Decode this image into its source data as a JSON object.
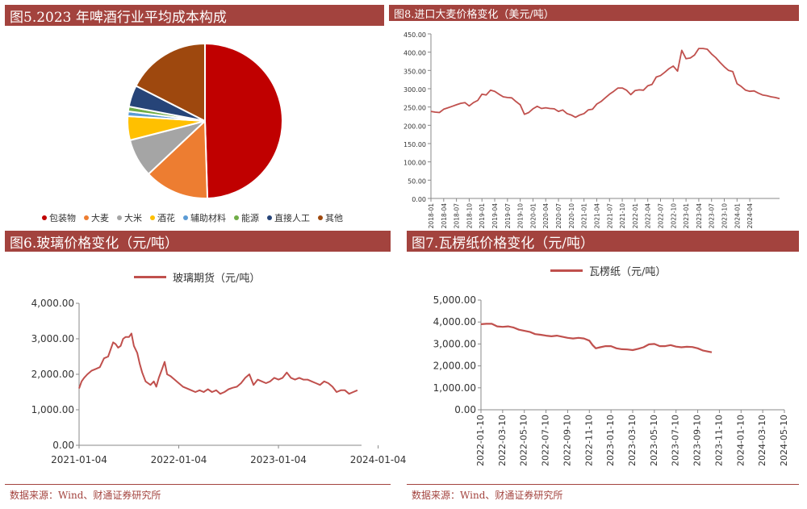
{
  "colors": {
    "title_bg": "#a3433e",
    "line": "#c0504d",
    "axis": "#888888"
  },
  "panels": {
    "p5": {
      "title": "图5.2023 年啤酒行业平均成本构成"
    },
    "p8": {
      "title": "图8.进口大麦价格变化（美元/吨）"
    },
    "p6": {
      "title": "图6.玻璃价格变化（元/吨）",
      "source": "数据来源：Wind、财通证券研究所"
    },
    "p7": {
      "title": "图7.瓦楞纸价格变化（元/吨）",
      "source": "数据来源：Wind、财通证券研究所"
    }
  },
  "chart_data": [
    {
      "id": "cost-pie",
      "type": "pie",
      "legend": "bottom",
      "categories": [
        "包装物",
        "大麦",
        "大米",
        "酒花",
        "辅助材料",
        "能源",
        "直接人工",
        "其他"
      ],
      "values": [
        49.5,
        13.5,
        8.0,
        5.0,
        1.0,
        1.0,
        4.5,
        17.5
      ],
      "colors": [
        "#c00000",
        "#ed7d31",
        "#a5a5a5",
        "#ffc000",
        "#5b9bd5",
        "#70ad47",
        "#264478",
        "#9e480e"
      ]
    },
    {
      "id": "barley-line",
      "type": "line",
      "legend": "none",
      "x_tick_labels": [
        "2018-01",
        "2018-04",
        "2018-07",
        "2018-10",
        "2019-01",
        "2019-04",
        "2019-07",
        "2019-10",
        "2020-01",
        "2020-04",
        "2020-07",
        "2020-10",
        "2021-01",
        "2021-04",
        "2021-07",
        "2021-10",
        "2022-01",
        "2022-04",
        "2022-07",
        "2022-10",
        "2023-01",
        "2023-04",
        "2023-07",
        "2023-10",
        "2024-01",
        "2024-04"
      ],
      "y_tick_labels": [
        "0.00",
        "50.00",
        "100.00",
        "150.00",
        "200.00",
        "250.00",
        "300.00",
        "350.00",
        "400.00",
        "450.00"
      ],
      "ylim": [
        0,
        450
      ],
      "x_start": "2018-01",
      "values": [
        238,
        236,
        235,
        244,
        248,
        252,
        256,
        260,
        262,
        253,
        262,
        268,
        285,
        283,
        296,
        293,
        285,
        278,
        276,
        275,
        265,
        256,
        230,
        235,
        245,
        252,
        246,
        248,
        246,
        245,
        238,
        242,
        232,
        228,
        222,
        228,
        232,
        242,
        244,
        258,
        265,
        275,
        285,
        293,
        302,
        302,
        296,
        284,
        295,
        297,
        296,
        308,
        312,
        332,
        336,
        345,
        355,
        362,
        348,
        405,
        382,
        384,
        392,
        410,
        410,
        408,
        395,
        385,
        372,
        360,
        350,
        347,
        314,
        306,
        296,
        293,
        294,
        288,
        283,
        281,
        278,
        276,
        273
      ]
    },
    {
      "id": "glass-line",
      "type": "line",
      "legend": "top",
      "series_name": "玻璃期货（元/吨）",
      "x_tick_labels": [
        "2021-01-04",
        "2022-01-04",
        "2023-01-04",
        "2024-01-04"
      ],
      "y_tick_labels": [
        "0.00",
        "1,000.00",
        "2,000.00",
        "3,000.00",
        "4,000.00"
      ],
      "ylim": [
        0,
        4000
      ],
      "x_start": "2021-01-04",
      "points": [
        [
          0,
          1600
        ],
        [
          0.3,
          1800
        ],
        [
          0.6,
          1900
        ],
        [
          1.0,
          2000
        ],
        [
          1.5,
          2100
        ],
        [
          2.0,
          2150
        ],
        [
          2.5,
          2200
        ],
        [
          3.0,
          2450
        ],
        [
          3.5,
          2500
        ],
        [
          3.8,
          2700
        ],
        [
          4.1,
          2900
        ],
        [
          4.4,
          2850
        ],
        [
          4.7,
          2750
        ],
        [
          5.0,
          2800
        ],
        [
          5.3,
          3000
        ],
        [
          5.6,
          3050
        ],
        [
          6.0,
          3050
        ],
        [
          6.3,
          3150
        ],
        [
          6.6,
          2800
        ],
        [
          7.0,
          2600
        ],
        [
          7.3,
          2300
        ],
        [
          7.6,
          2050
        ],
        [
          8.0,
          1800
        ],
        [
          8.3,
          1750
        ],
        [
          8.6,
          1700
        ],
        [
          9.0,
          1800
        ],
        [
          9.3,
          1650
        ],
        [
          9.6,
          1900
        ],
        [
          10.0,
          2150
        ],
        [
          10.3,
          2350
        ],
        [
          10.6,
          2000
        ],
        [
          11.0,
          1950
        ],
        [
          11.5,
          1850
        ],
        [
          12.0,
          1750
        ],
        [
          12.5,
          1650
        ],
        [
          13.0,
          1600
        ],
        [
          13.5,
          1550
        ],
        [
          14.0,
          1500
        ],
        [
          14.5,
          1550
        ],
        [
          15.0,
          1500
        ],
        [
          15.5,
          1580
        ],
        [
          16.0,
          1500
        ],
        [
          16.5,
          1550
        ],
        [
          17.0,
          1450
        ],
        [
          17.5,
          1500
        ],
        [
          18.0,
          1580
        ],
        [
          18.5,
          1620
        ],
        [
          19.0,
          1650
        ],
        [
          19.5,
          1750
        ],
        [
          20.0,
          1900
        ],
        [
          20.5,
          2000
        ],
        [
          21.0,
          1700
        ],
        [
          21.5,
          1850
        ],
        [
          22.0,
          1800
        ],
        [
          22.5,
          1750
        ],
        [
          23.0,
          1800
        ],
        [
          23.5,
          1900
        ],
        [
          24.0,
          1850
        ],
        [
          24.5,
          1900
        ],
        [
          25.0,
          2050
        ],
        [
          25.5,
          1900
        ],
        [
          26.0,
          1850
        ],
        [
          26.5,
          1900
        ],
        [
          27.0,
          1850
        ],
        [
          27.5,
          1850
        ],
        [
          28.0,
          1800
        ],
        [
          28.5,
          1750
        ],
        [
          29.0,
          1700
        ],
        [
          29.5,
          1800
        ],
        [
          30.0,
          1750
        ],
        [
          30.5,
          1650
        ],
        [
          31.0,
          1500
        ],
        [
          31.5,
          1550
        ],
        [
          32.0,
          1550
        ],
        [
          32.5,
          1450
        ],
        [
          33.0,
          1500
        ],
        [
          33.5,
          1550
        ]
      ]
    },
    {
      "id": "paper-line",
      "type": "line",
      "legend": "top",
      "series_name": "瓦楞纸（元/吨）",
      "x_tick_labels": [
        "2022-01-10",
        "2022-03-10",
        "2022-05-10",
        "2022-07-10",
        "2022-09-10",
        "2022-11-10",
        "2023-01-10",
        "2023-03-10",
        "2023-05-10",
        "2023-07-10",
        "2023-09-10",
        "2023-11-10",
        "2024-01-10",
        "2024-03-10",
        "2024-05-10"
      ],
      "y_tick_labels": [
        "0.00",
        "1,000.00",
        "2,000.00",
        "3,000.00",
        "4,000.00",
        "5,000.00"
      ],
      "ylim": [
        0,
        5000
      ],
      "x_start": "2022-01-10",
      "points": [
        [
          0,
          3900
        ],
        [
          0.5,
          3920
        ],
        [
          1.0,
          3920
        ],
        [
          1.5,
          3800
        ],
        [
          2.0,
          3780
        ],
        [
          2.5,
          3800
        ],
        [
          3.0,
          3750
        ],
        [
          3.5,
          3650
        ],
        [
          4.0,
          3600
        ],
        [
          4.5,
          3550
        ],
        [
          5.0,
          3450
        ],
        [
          5.5,
          3420
        ],
        [
          6.0,
          3380
        ],
        [
          6.5,
          3350
        ],
        [
          7.0,
          3380
        ],
        [
          7.5,
          3330
        ],
        [
          8.0,
          3280
        ],
        [
          8.5,
          3250
        ],
        [
          9.0,
          3280
        ],
        [
          9.5,
          3250
        ],
        [
          10.0,
          3150
        ],
        [
          10.3,
          2950
        ],
        [
          10.6,
          2800
        ],
        [
          11.0,
          2850
        ],
        [
          11.5,
          2900
        ],
        [
          12.0,
          2900
        ],
        [
          12.5,
          2800
        ],
        [
          13.0,
          2760
        ],
        [
          13.5,
          2750
        ],
        [
          14.0,
          2720
        ],
        [
          14.5,
          2780
        ],
        [
          15.0,
          2850
        ],
        [
          15.5,
          2980
        ],
        [
          16.0,
          3000
        ],
        [
          16.5,
          2900
        ],
        [
          17.0,
          2900
        ],
        [
          17.5,
          2950
        ],
        [
          18.0,
          2880
        ],
        [
          18.5,
          2850
        ],
        [
          19.0,
          2870
        ],
        [
          19.5,
          2860
        ],
        [
          20.0,
          2800
        ],
        [
          20.5,
          2700
        ],
        [
          21.0,
          2650
        ],
        [
          21.3,
          2620
        ]
      ]
    }
  ]
}
